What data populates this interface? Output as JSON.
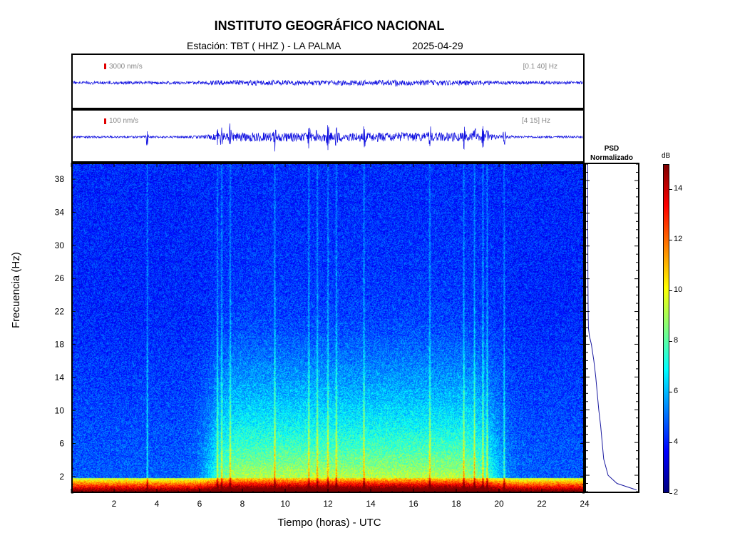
{
  "header": {
    "title": "INSTITUTO GEOGRÁFICO NACIONAL",
    "station": "Estación:  TBT ( HHZ ) - LA PALMA",
    "date": "2025-04-29"
  },
  "traces": [
    {
      "scale_label": "3000 nm/s",
      "band_label": "[0.1 40] Hz"
    },
    {
      "scale_label": "100 nm/s",
      "band_label": "[4 15] Hz"
    }
  ],
  "psd": {
    "title_line1": "PSD",
    "title_line2": "Normalizado"
  },
  "colorbar": {
    "unit": "dB",
    "ticks": [
      "14",
      "12",
      "10",
      "8",
      "6",
      "4",
      "2"
    ],
    "colors": [
      "#00007f",
      "#0000ff",
      "#0080ff",
      "#00ffff",
      "#80ff80",
      "#ffff00",
      "#ff8000",
      "#ff0000",
      "#7f0000"
    ]
  },
  "chart_data": {
    "type": "heatmap",
    "title": "INSTITUTO GEOGRÁFICO NACIONAL",
    "xlabel": "Tiempo (horas) - UTC",
    "ylabel": "Frecuencia  (Hz)",
    "xlim": [
      0,
      24
    ],
    "ylim": [
      0,
      40
    ],
    "x_ticks": [
      "2",
      "4",
      "6",
      "8",
      "10",
      "12",
      "14",
      "16",
      "18",
      "20",
      "22",
      "24"
    ],
    "y_ticks": [
      "38",
      "34",
      "30",
      "26",
      "22",
      "18",
      "14",
      "10",
      "6",
      "2"
    ],
    "color_range_db": [
      2,
      15
    ],
    "event_times_hours": [
      3.5,
      6.8,
      7.0,
      7.4,
      9.5,
      11.1,
      11.5,
      12.0,
      12.4,
      13.7,
      16.8,
      18.4,
      18.9,
      19.3,
      19.5,
      20.3
    ],
    "psd_curve": {
      "frequency_hz": [
        0.2,
        1,
        2,
        4,
        6,
        8,
        10,
        12,
        14,
        16,
        18,
        19,
        20,
        22,
        26,
        30,
        34,
        38,
        40
      ],
      "normalized_power": [
        1.0,
        0.6,
        0.42,
        0.33,
        0.3,
        0.27,
        0.23,
        0.2,
        0.17,
        0.13,
        0.08,
        0.04,
        0.02,
        0.015,
        0.01,
        0.008,
        0.006,
        0.005,
        0.005
      ]
    }
  }
}
